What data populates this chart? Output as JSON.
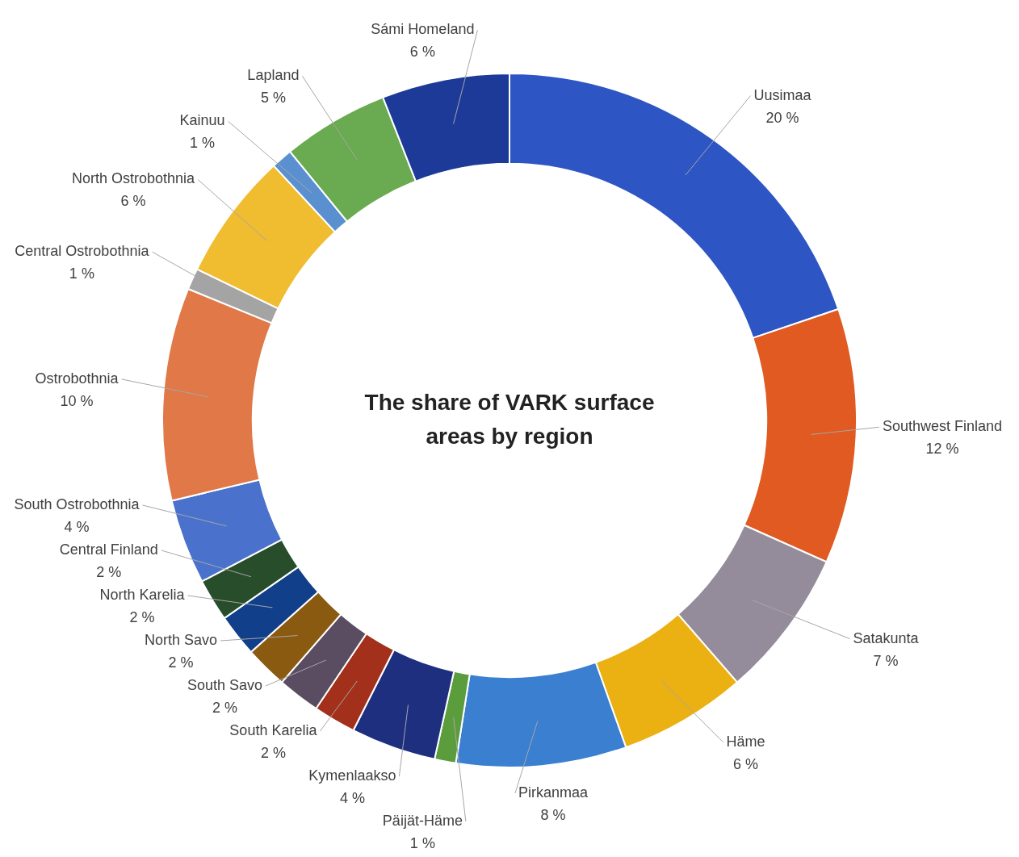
{
  "chart_data": {
    "type": "donut",
    "title": "The share of VARK surface areas by region",
    "categories": [
      "Uusimaa",
      "Southwest Finland",
      "Satakunta",
      "Häme",
      "Pirkanmaa",
      "Päijät-Häme",
      "Kymenlaakso",
      "South Karelia",
      "South Savo",
      "North Savo",
      "North Karelia",
      "Central Finland",
      "South Ostrobothnia",
      "Ostrobothnia",
      "Central Ostrobothnia",
      "North Ostrobothnia",
      "Kainuu",
      "Lapland",
      "Sámi Homeland"
    ],
    "values": [
      20,
      12,
      7,
      6,
      8,
      1,
      4,
      2,
      2,
      2,
      2,
      2,
      4,
      10,
      1,
      6,
      1,
      5,
      6
    ],
    "value_labels": [
      "20 %",
      "12 %",
      "7 %",
      "6 %",
      "8 %",
      "1 %",
      "4 %",
      "2 %",
      "2 %",
      "2 %",
      "2 %",
      "2 %",
      "4 %",
      "10 %",
      "1 %",
      "6 %",
      "1 %",
      "5 %",
      "6 %"
    ],
    "colors": [
      "#2e55c4",
      "#e05a22",
      "#948c9a",
      "#ebb012",
      "#3a7fd0",
      "#5b9d3c",
      "#1e2f80",
      "#a3301a",
      "#5a4d62",
      "#8a5a10",
      "#123f8a",
      "#284d2a",
      "#4a72cc",
      "#e07848",
      "#a4a4a4",
      "#f0bc30",
      "#5a90d0",
      "#6aaa50",
      "#1e3a98"
    ],
    "legend": false
  }
}
